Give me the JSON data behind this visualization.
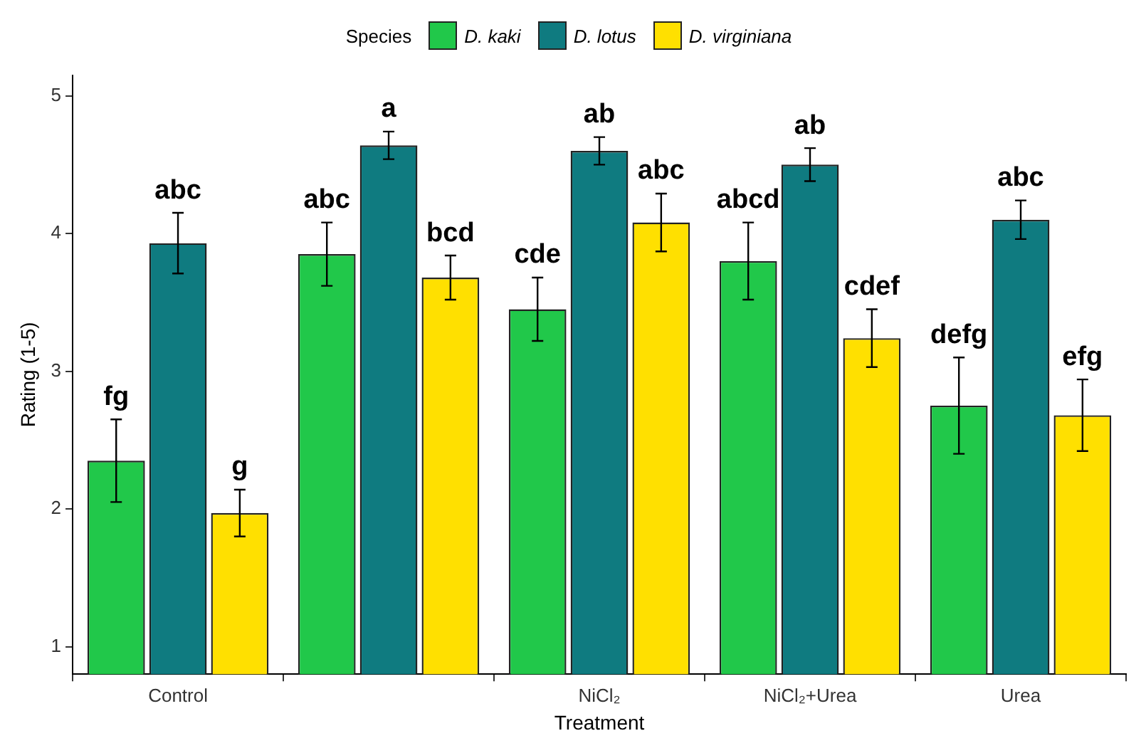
{
  "chart_data": {
    "type": "bar",
    "xlabel": "Treatment",
    "ylabel": "Rating (1-5)",
    "legend_title": "Species",
    "legend": "top",
    "grid": false,
    "categories": [
      "Control",
      null,
      "NiCl₂",
      "NiCl₂+Urea",
      "Urea"
    ],
    "ylim": [
      0.8,
      5.15
    ],
    "yticks": [
      1,
      2,
      3,
      4,
      5
    ],
    "series": [
      {
        "name": "D. kaki",
        "color": "#21c84a",
        "values": [
          2.35,
          3.85,
          3.45,
          3.8,
          2.75
        ],
        "errors": [
          0.3,
          0.23,
          0.23,
          0.28,
          0.35
        ],
        "value_labels": [
          "fg",
          "abc",
          "cde",
          "abcd",
          "defg"
        ]
      },
      {
        "name": "D. lotus",
        "color": "#0f7b80",
        "values": [
          3.93,
          4.64,
          4.6,
          4.5,
          4.1
        ],
        "errors": [
          0.22,
          0.1,
          0.1,
          0.12,
          0.14
        ],
        "value_labels": [
          "abc",
          "a",
          "ab",
          "ab",
          "abc"
        ]
      },
      {
        "name": "D. virginiana",
        "color": "#ffe000",
        "values": [
          1.97,
          3.68,
          4.08,
          3.24,
          2.68
        ],
        "errors": [
          0.17,
          0.16,
          0.21,
          0.21,
          0.26
        ],
        "value_labels": [
          "g",
          "bcd",
          "abc",
          "cdef",
          "efg"
        ]
      }
    ]
  }
}
